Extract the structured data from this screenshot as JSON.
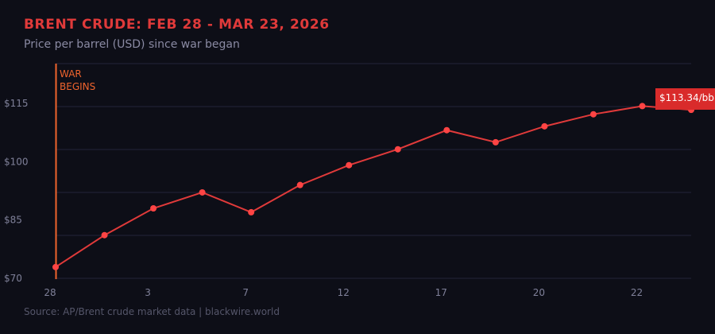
{
  "chart_data": {
    "type": "line",
    "title": "BRENT CRUDE: FEB 28 - MAR 23, 2026",
    "subtitle": "Price per barrel (USD) since war began",
    "source": "Source: AP/Brent crude market data | blackwire.world",
    "xlabel": "",
    "ylabel": "",
    "ylim": [
      70,
      125
    ],
    "y_ticks": [
      {
        "value": 70,
        "label": "$70"
      },
      {
        "value": 85,
        "label": "$85"
      },
      {
        "value": 100,
        "label": "$100"
      },
      {
        "value": 115,
        "label": "$115"
      }
    ],
    "x_ticks": [
      {
        "index": 0,
        "label": "28"
      },
      {
        "index": 2,
        "label": "3"
      },
      {
        "index": 4,
        "label": "7"
      },
      {
        "index": 6,
        "label": "12"
      },
      {
        "index": 8,
        "label": "17"
      },
      {
        "index": 10,
        "label": "20"
      },
      {
        "index": 12,
        "label": "22"
      }
    ],
    "values": [
      72.9,
      81.1,
      88.0,
      92.1,
      87.0,
      94.0,
      99.1,
      103.2,
      108.1,
      105.0,
      109.1,
      112.2,
      114.3,
      113.34
    ],
    "grid": true,
    "annotation": {
      "line1": "WAR",
      "line2": "BEGINS",
      "index": 0,
      "color": "#f0642d"
    },
    "last_label": "$113.34/bb",
    "colors": {
      "line": "#e03a3a",
      "marker": "#ff4444",
      "grid": "#23243a",
      "label_bg": "#d92b2b"
    }
  }
}
